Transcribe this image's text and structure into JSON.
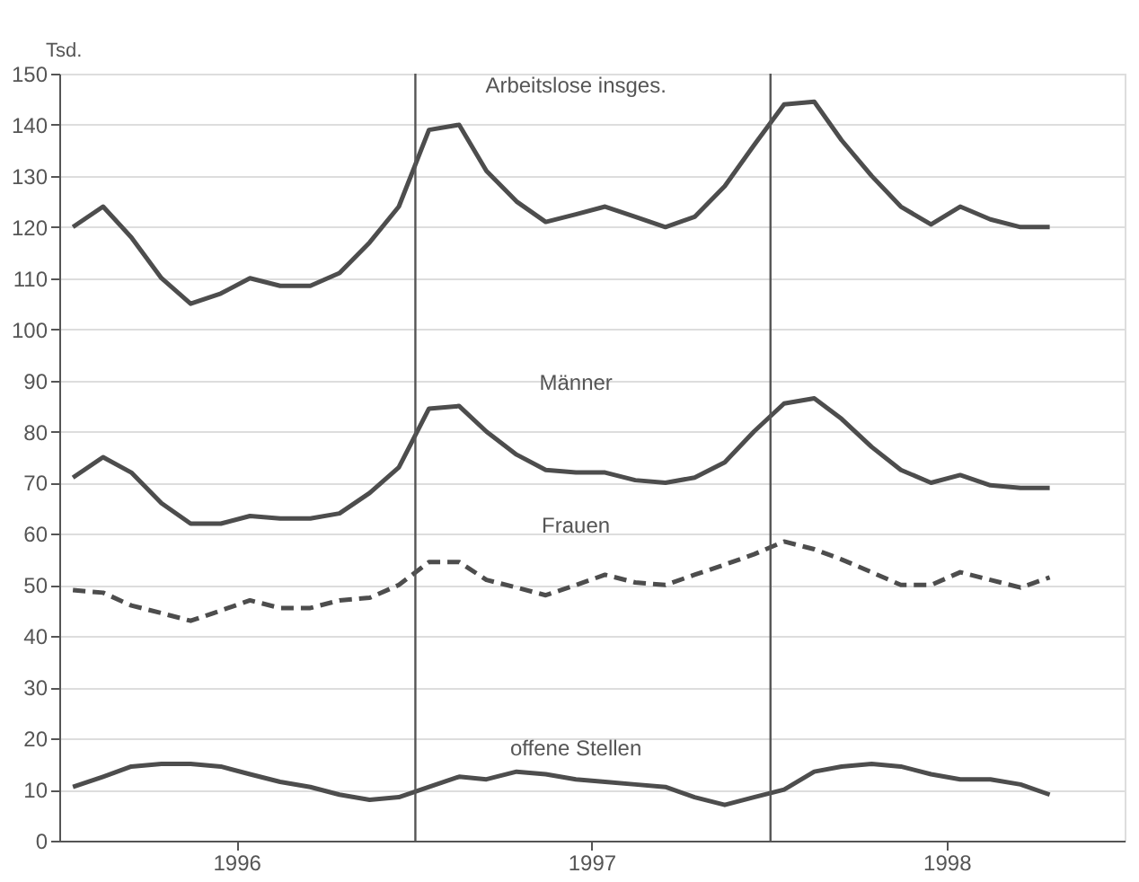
{
  "chart_data": {
    "type": "line",
    "ylabel": "Tsd.",
    "x": [
      "1996-01-15",
      "1996-02-15",
      "1996-03-15",
      "1996-04-15",
      "1996-05-15",
      "1996-06-15",
      "1996-07-15",
      "1996-08-15",
      "1996-09-15",
      "1996-10-15",
      "1996-11-15",
      "1996-12-15",
      "1997-01-15",
      "1997-02-15",
      "1997-03-15",
      "1997-04-15",
      "1997-05-15",
      "1997-06-15",
      "1997-07-15",
      "1997-08-15",
      "1997-09-15",
      "1997-10-15",
      "1997-11-15",
      "1997-12-15",
      "1998-01-15",
      "1998-02-15",
      "1998-03-15",
      "1998-04-15",
      "1998-05-15",
      "1998-06-15",
      "1998-07-15",
      "1998-08-15",
      "1998-09-15",
      "1998-10-15"
    ],
    "series": [
      {
        "name": "Arbeitslose insges.",
        "color": "#4d4d4d",
        "line_style": "solid",
        "values": [
          120,
          124,
          118,
          110,
          105,
          107,
          110,
          108.5,
          108.5,
          111,
          117,
          124,
          139,
          140,
          131,
          125,
          121,
          122.5,
          124,
          122,
          120,
          122,
          128,
          136,
          144,
          144.5,
          137,
          130,
          124,
          120.5,
          124,
          121.5,
          120,
          120
        ]
      },
      {
        "name": "Männer",
        "color": "#4d4d4d",
        "line_style": "solid",
        "values": [
          71,
          75,
          72,
          66,
          62,
          62,
          63.5,
          63,
          63,
          64,
          68,
          73,
          84.5,
          85,
          80,
          75.5,
          72.5,
          72,
          72,
          70.5,
          70,
          71,
          74,
          80,
          85.5,
          86.5,
          82.5,
          77,
          72.5,
          70,
          71.5,
          69.5,
          69,
          69
        ]
      },
      {
        "name": "Frauen",
        "color": "#4d4d4d",
        "line_style": "dashed",
        "values": [
          49,
          48.5,
          46,
          44.5,
          43,
          45,
          47,
          45.5,
          45.5,
          47,
          47.5,
          50,
          54.5,
          54.5,
          51,
          49.5,
          48,
          50,
          52,
          50.5,
          50,
          52,
          54,
          56,
          58.5,
          57,
          55,
          52.5,
          50,
          50,
          52.5,
          51,
          49.5,
          51.5
        ]
      },
      {
        "name": "offene Stellen",
        "color": "#4d4d4d",
        "line_style": "solid",
        "values": [
          10.5,
          12.5,
          14.5,
          15,
          15,
          14.5,
          13,
          11.5,
          10.5,
          9,
          8,
          8.5,
          10.5,
          12.5,
          12,
          13.5,
          13,
          12,
          11.5,
          11,
          10.5,
          8.5,
          7,
          8.5,
          10,
          13.5,
          14.5,
          15,
          14.5,
          13,
          12,
          12,
          11,
          9
        ]
      }
    ],
    "xlim": [
      "1996-01-01",
      "1998-12-31"
    ],
    "xticks": [
      {
        "value": "1996-07-01",
        "label": "1996"
      },
      {
        "value": "1997-07-01",
        "label": "1997"
      },
      {
        "value": "1998-07-01",
        "label": "1998"
      }
    ],
    "ref_lines": [
      {
        "axis": "x",
        "value": "1997-01-01",
        "label": null,
        "color": "#555555"
      },
      {
        "axis": "x",
        "value": "1998-01-01",
        "label": null,
        "color": "#555555"
      }
    ],
    "ylim": [
      0,
      150
    ],
    "yticks": [
      0,
      10,
      20,
      30,
      40,
      50,
      60,
      70,
      80,
      90,
      100,
      110,
      120,
      130,
      140,
      150
    ],
    "grid": "y",
    "marker": "none"
  }
}
